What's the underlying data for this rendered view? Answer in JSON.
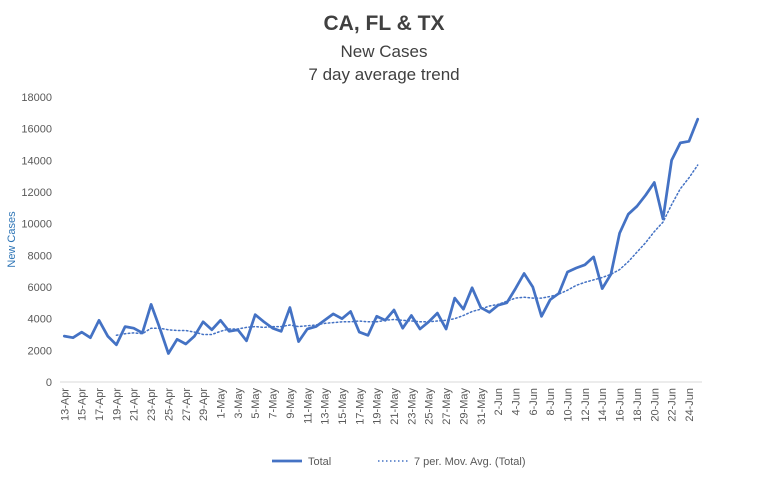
{
  "chart_data": {
    "type": "line",
    "title": "CA, FL & TX",
    "subtitle": "New Cases",
    "subtitle2": "7 day average trend",
    "xlabel": "",
    "ylabel": "New Cases",
    "ylim": [
      0,
      18000
    ],
    "yticks": [
      0,
      2000,
      4000,
      6000,
      8000,
      10000,
      12000,
      14000,
      16000,
      18000
    ],
    "x": [
      "13-Apr",
      "14-Apr",
      "15-Apr",
      "16-Apr",
      "17-Apr",
      "18-Apr",
      "19-Apr",
      "20-Apr",
      "21-Apr",
      "22-Apr",
      "23-Apr",
      "24-Apr",
      "25-Apr",
      "26-Apr",
      "27-Apr",
      "28-Apr",
      "29-Apr",
      "30-Apr",
      "1-May",
      "2-May",
      "3-May",
      "4-May",
      "5-May",
      "6-May",
      "7-May",
      "8-May",
      "9-May",
      "10-May",
      "11-May",
      "12-May",
      "13-May",
      "14-May",
      "15-May",
      "16-May",
      "17-May",
      "18-May",
      "19-May",
      "20-May",
      "21-May",
      "22-May",
      "23-May",
      "24-May",
      "25-May",
      "26-May",
      "27-May",
      "28-May",
      "29-May",
      "30-May",
      "31-May",
      "1-Jun",
      "2-Jun",
      "3-Jun",
      "4-Jun",
      "5-Jun",
      "6-Jun",
      "7-Jun",
      "8-Jun",
      "9-Jun",
      "10-Jun",
      "11-Jun",
      "12-Jun",
      "13-Jun",
      "14-Jun",
      "15-Jun",
      "16-Jun",
      "17-Jun",
      "18-Jun",
      "19-Jun",
      "20-Jun",
      "21-Jun",
      "22-Jun",
      "23-Jun",
      "24-Jun",
      "25-Jun"
    ],
    "x_tick_labels": [
      "13-Apr",
      "15-Apr",
      "17-Apr",
      "19-Apr",
      "21-Apr",
      "23-Apr",
      "25-Apr",
      "27-Apr",
      "29-Apr",
      "1-May",
      "3-May",
      "5-May",
      "7-May",
      "9-May",
      "11-May",
      "13-May",
      "15-May",
      "17-May",
      "19-May",
      "21-May",
      "23-May",
      "25-May",
      "27-May",
      "29-May",
      "31-May",
      "2-Jun",
      "4-Jun",
      "6-Jun",
      "8-Jun",
      "10-Jun",
      "12-Jun",
      "14-Jun",
      "16-Jun",
      "18-Jun",
      "20-Jun",
      "22-Jun",
      "24-Jun"
    ],
    "series": [
      {
        "name": "Total",
        "style": "solid",
        "color": "#4472C4",
        "values": [
          2900,
          2800,
          3150,
          2800,
          3900,
          2900,
          2350,
          3500,
          3400,
          3100,
          4900,
          3400,
          1800,
          2700,
          2400,
          2900,
          3800,
          3300,
          3900,
          3200,
          3300,
          2600,
          4250,
          3800,
          3400,
          3200,
          4700,
          2550,
          3350,
          3500,
          3900,
          4300,
          4000,
          4450,
          3150,
          2950,
          4150,
          3900,
          4550,
          3400,
          4200,
          3350,
          3800,
          4350,
          3350,
          5300,
          4600,
          5950,
          4700,
          4400,
          4850,
          5000,
          5900,
          6850,
          6000,
          4150,
          5200,
          5600,
          6950,
          7200,
          7400,
          7900,
          5900,
          6800,
          9400,
          10600,
          11100,
          11800,
          12600,
          10300,
          14000,
          15100,
          15200,
          16600
        ],
        "legend": "Total"
      },
      {
        "name": "7 per. Mov. Avg. (Total)",
        "style": "dotted",
        "color": "#4472C4",
        "values": [
          null,
          null,
          null,
          null,
          null,
          null,
          2950,
          3050,
          3100,
          3050,
          3400,
          3400,
          3300,
          3250,
          3250,
          3150,
          3000,
          3000,
          3200,
          3350,
          3350,
          3450,
          3500,
          3450,
          3500,
          3500,
          3600,
          3500,
          3550,
          3600,
          3700,
          3750,
          3800,
          3800,
          3850,
          3800,
          3800,
          3900,
          3950,
          3900,
          3850,
          3800,
          3800,
          3850,
          3900,
          4000,
          4200,
          4450,
          4600,
          4800,
          4900,
          5100,
          5300,
          5350,
          5300,
          5300,
          5400,
          5550,
          5800,
          6100,
          6300,
          6450,
          6600,
          6800,
          7100,
          7600,
          8200,
          8800,
          9500,
          10100,
          11200,
          12200,
          12900,
          13700
        ],
        "legend": "7 per. Mov. Avg. (Total)"
      }
    ],
    "legend_position": "bottom",
    "grid": false
  },
  "colors": {
    "line": "#4472C4",
    "axis_text": "#595959",
    "ylabel": "#2E75B6",
    "title": "#404040"
  }
}
